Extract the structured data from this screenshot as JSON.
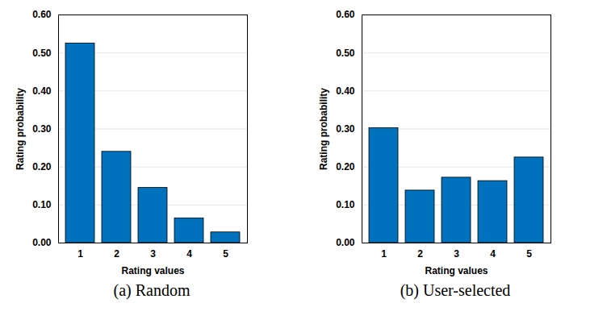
{
  "chart_data": [
    {
      "type": "bar",
      "title": "(a) Random",
      "x_label": "Rating values",
      "y_label": "Rating probability",
      "categories": [
        1,
        2,
        3,
        4,
        5
      ],
      "values": [
        0.525,
        0.24,
        0.145,
        0.065,
        0.028
      ],
      "color": "#0072bd",
      "ylim": [
        0,
        0.6
      ],
      "yticks": [
        0,
        0.1,
        0.2,
        0.3,
        0.4,
        0.5,
        0.6
      ],
      "grid": true
    },
    {
      "type": "bar",
      "title": "(b) User-selected",
      "x_label": "Rating values",
      "y_label": "Rating probability",
      "categories": [
        1,
        2,
        3,
        4,
        5
      ],
      "values": [
        0.302,
        0.138,
        0.172,
        0.163,
        0.225
      ],
      "color": "#0072bd",
      "ylim": [
        0,
        0.6
      ],
      "yticks": [
        0,
        0.1,
        0.2,
        0.3,
        0.4,
        0.5,
        0.6
      ],
      "grid": true
    }
  ]
}
